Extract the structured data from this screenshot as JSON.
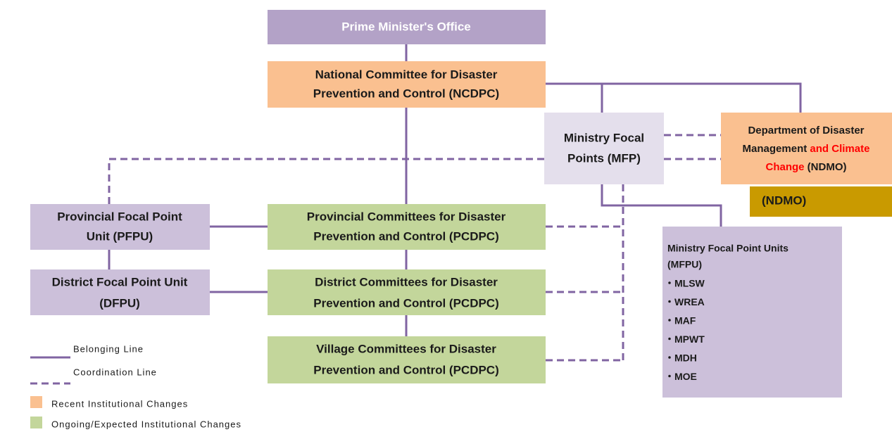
{
  "nodes": [
    {
      "lines": [
        "Prime Minister's Office"
      ]
    },
    {
      "lines": [
        "National Committee for Disaster",
        "Prevention and Control (NCDPC)"
      ]
    },
    {
      "lines": [
        "Ministry Focal",
        "Points (MFP)"
      ]
    },
    {
      "lines": [
        [
          {
            "text": "Department of Disaster"
          }
        ],
        [
          {
            "text": "Management"
          },
          {
            "text": "and Climate",
            "color": "#ff0000"
          }
        ],
        [
          {
            "text": "Change",
            "color": "#ff0000"
          },
          {
            "text": "(NDMO)"
          }
        ]
      ]
    },
    {
      "lines": [
        "(NDMO)"
      ]
    },
    {
      "lines": [
        "Provincial Focal Point",
        "Unit (PFPU)"
      ]
    },
    {
      "lines": [
        "Provincial Committees for Disaster",
        "Prevention and Control (PCDPC)"
      ]
    },
    {
      "lines": [
        "District Focal Point Unit",
        "(DFPU)"
      ]
    },
    {
      "lines": [
        "District Committees for Disaster",
        "Prevention and Control (PCDPC)"
      ]
    },
    {
      "lines": [
        "Village Committees for Disaster",
        "Prevention and Control (PCDPC)"
      ]
    },
    {
      "lines": [
        "Ministry Focal Point Units",
        "(MFPU)"
      ],
      "items": [
        "・MLSW",
        "・WREA",
        "・MAF",
        "・MPWT",
        "・MDH",
        "・MOE"
      ]
    }
  ],
  "legend": [
    {
      "label": "Belonging Line"
    },
    {
      "label": "Coordination Line"
    },
    {
      "label": "Recent Institutional Changes",
      "color": "#fac090"
    },
    {
      "label": "Ongoing/Expected Institutional Changes",
      "color": "#c3d69b"
    }
  ]
}
